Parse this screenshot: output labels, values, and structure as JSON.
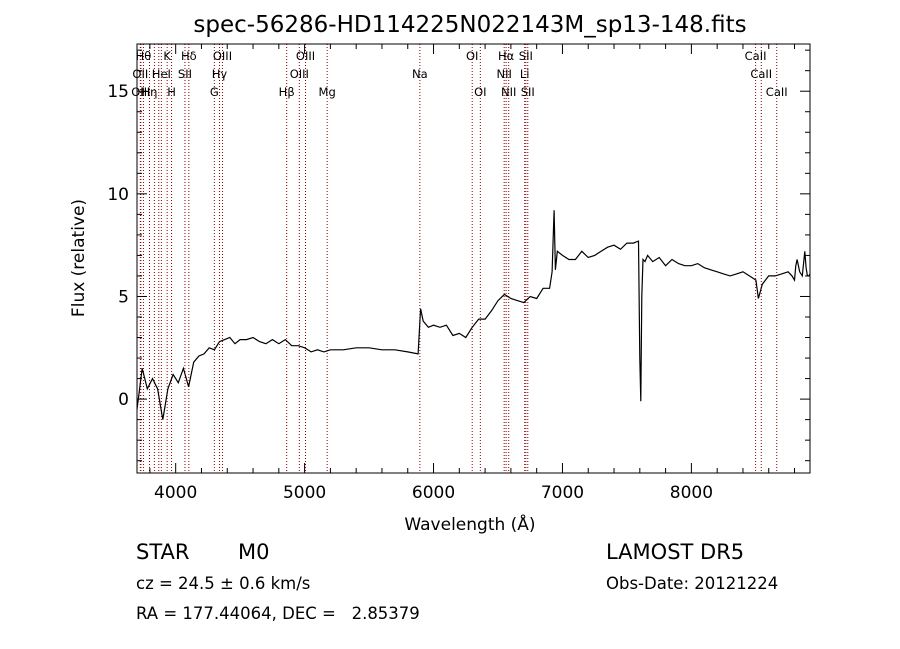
{
  "chart_data": {
    "type": "line",
    "title": "spec-56286-HD114225N022143M_sp13-148.fits",
    "xlabel": "Wavelength (Å)",
    "ylabel": "Flux (relative)",
    "xlim": [
      3700,
      8920
    ],
    "ylim": [
      -3.6,
      17.3
    ],
    "xticks": [
      4000,
      5000,
      6000,
      7000,
      8000
    ],
    "yticks": [
      0,
      5,
      10,
      15
    ],
    "grid": false,
    "series": [
      {
        "color": "#000000",
        "x": [
          3700,
          3740,
          3780,
          3820,
          3860,
          3900,
          3940,
          3980,
          4020,
          4060,
          4100,
          4140,
          4180,
          4220,
          4260,
          4300,
          4340,
          4380,
          4420,
          4460,
          4500,
          4550,
          4600,
          4650,
          4700,
          4750,
          4800,
          4850,
          4900,
          4950,
          5000,
          5050,
          5100,
          5150,
          5200,
          5300,
          5400,
          5500,
          5600,
          5700,
          5800,
          5880,
          5900,
          5920,
          5960,
          6000,
          6050,
          6100,
          6150,
          6200,
          6250,
          6300,
          6350,
          6400,
          6450,
          6500,
          6550,
          6600,
          6650,
          6700,
          6750,
          6800,
          6850,
          6900,
          6920,
          6935,
          6945,
          6960,
          7000,
          7050,
          7100,
          7150,
          7200,
          7250,
          7300,
          7350,
          7400,
          7450,
          7500,
          7550,
          7590,
          7600,
          7608,
          7615,
          7625,
          7640,
          7660,
          7700,
          7750,
          7800,
          7850,
          7900,
          7950,
          8000,
          8050,
          8100,
          8150,
          8200,
          8250,
          8300,
          8350,
          8400,
          8450,
          8500,
          8520,
          8550,
          8600,
          8650,
          8700,
          8750,
          8780,
          8800,
          8810,
          8820,
          8840,
          8860,
          8880,
          8890,
          8900,
          8910,
          8920
        ],
        "y": [
          -0.5,
          1.5,
          0.5,
          1.0,
          0.5,
          -1.0,
          0.5,
          1.2,
          0.8,
          1.5,
          0.6,
          1.8,
          2.1,
          2.2,
          2.5,
          2.4,
          2.8,
          2.9,
          3.0,
          2.7,
          2.9,
          2.9,
          3.0,
          2.8,
          2.7,
          2.9,
          2.7,
          2.9,
          2.6,
          2.6,
          2.5,
          2.3,
          2.4,
          2.3,
          2.4,
          2.4,
          2.5,
          2.5,
          2.4,
          2.4,
          2.3,
          2.2,
          4.4,
          3.8,
          3.5,
          3.6,
          3.5,
          3.6,
          3.1,
          3.2,
          3.0,
          3.5,
          3.9,
          3.9,
          4.3,
          4.8,
          5.1,
          4.9,
          4.8,
          4.7,
          5.0,
          4.9,
          5.4,
          5.4,
          6.2,
          9.2,
          6.3,
          7.2,
          7.0,
          6.8,
          6.8,
          7.2,
          6.9,
          7.0,
          7.2,
          7.4,
          7.5,
          7.3,
          7.6,
          7.6,
          7.7,
          2.0,
          -0.1,
          5.0,
          6.8,
          6.7,
          7.0,
          6.7,
          6.9,
          6.5,
          6.8,
          6.6,
          6.5,
          6.5,
          6.6,
          6.4,
          6.3,
          6.2,
          6.1,
          6.0,
          6.1,
          6.2,
          6.0,
          5.8,
          4.9,
          5.6,
          6.0,
          6.0,
          6.1,
          6.2,
          6.0,
          5.8,
          6.5,
          6.8,
          6.2,
          6.0,
          7.2,
          6.4,
          6.0,
          6.0,
          6.1
        ]
      }
    ],
    "lines": [
      {
        "wave": 3726,
        "label": "OII",
        "row": 1
      },
      {
        "wave": 3730,
        "label": "OIII",
        "row": 2
      },
      {
        "wave": 3750,
        "label": "Hθ",
        "row": 0
      },
      {
        "wave": 3797,
        "label": "Hη",
        "row": 2
      },
      {
        "wave": 3835,
        "label": "",
        "row": 0
      },
      {
        "wave": 3869,
        "label": "",
        "row": 0
      },
      {
        "wave": 3889,
        "label": "HeI",
        "row": 1
      },
      {
        "wave": 3934,
        "label": "K",
        "row": 0
      },
      {
        "wave": 3968,
        "label": "H",
        "row": 2
      },
      {
        "wave": 4102,
        "label": "Hδ",
        "row": 0
      },
      {
        "wave": 4072,
        "label": "SII",
        "row": 1
      },
      {
        "wave": 4300,
        "label": "G",
        "row": 2
      },
      {
        "wave": 4340,
        "label": "Hγ",
        "row": 1
      },
      {
        "wave": 4363,
        "label": "OIII",
        "row": 0
      },
      {
        "wave": 4861,
        "label": "Hβ",
        "row": 2
      },
      {
        "wave": 4959,
        "label": "OIII",
        "row": 1
      },
      {
        "wave": 5007,
        "label": "OIII",
        "row": 0
      },
      {
        "wave": 5175,
        "label": "Mg",
        "row": 2
      },
      {
        "wave": 5894,
        "label": "Na",
        "row": 1
      },
      {
        "wave": 6300,
        "label": "OI",
        "row": 0
      },
      {
        "wave": 6363,
        "label": "OI",
        "row": 2
      },
      {
        "wave": 6548,
        "label": "NII",
        "row": 1
      },
      {
        "wave": 6563,
        "label": "Hα",
        "row": 0
      },
      {
        "wave": 6583,
        "label": "NII",
        "row": 2
      },
      {
        "wave": 6707,
        "label": "Li",
        "row": 1
      },
      {
        "wave": 6716,
        "label": "SII",
        "row": 0
      },
      {
        "wave": 6731,
        "label": "SII",
        "row": 2
      },
      {
        "wave": 8498,
        "label": "CaII",
        "row": 0
      },
      {
        "wave": 8542,
        "label": "CaII",
        "row": 1
      },
      {
        "wave": 8662,
        "label": "CaII",
        "row": 2
      }
    ]
  },
  "info": {
    "star": "STAR",
    "class": "M0",
    "survey": "LAMOST DR5",
    "cz": "cz = 24.5 ± 0.6 km/s",
    "obs_date": "Obs-Date: 20121224",
    "radec": "RA = 177.44064, DEC =   2.85379"
  }
}
